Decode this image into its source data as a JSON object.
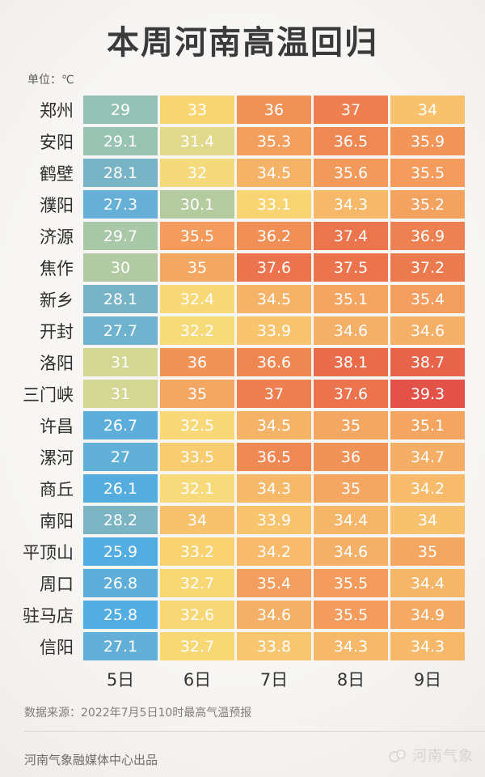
{
  "header": {
    "title": "本周河南高温回归",
    "unit_label": "单位：℃"
  },
  "chart_data": {
    "type": "heatmap",
    "title": "本周河南高温回归",
    "unit": "℃",
    "columns": [
      "5日",
      "6日",
      "7日",
      "8日",
      "9日"
    ],
    "rows": [
      {
        "city": "郑州",
        "values": [
          "29",
          "33",
          "36",
          "37",
          "34"
        ]
      },
      {
        "city": "安阳",
        "values": [
          "29.1",
          "31.4",
          "35.3",
          "36.5",
          "35.9"
        ]
      },
      {
        "city": "鹤壁",
        "values": [
          "28.1",
          "32",
          "34.5",
          "35.6",
          "35.5"
        ]
      },
      {
        "city": "濮阳",
        "values": [
          "27.3",
          "30.1",
          "33.1",
          "34.3",
          "35.2"
        ]
      },
      {
        "city": "济源",
        "values": [
          "29.7",
          "35.5",
          "36.2",
          "37.4",
          "36.9"
        ]
      },
      {
        "city": "焦作",
        "values": [
          "30",
          "35",
          "37.6",
          "37.5",
          "37.2"
        ]
      },
      {
        "city": "新乡",
        "values": [
          "28.1",
          "32.4",
          "34.5",
          "35.1",
          "35.4"
        ]
      },
      {
        "city": "开封",
        "values": [
          "27.7",
          "32.2",
          "33.9",
          "34.6",
          "34.6"
        ]
      },
      {
        "city": "洛阳",
        "values": [
          "31",
          "36",
          "36.6",
          "38.1",
          "38.7"
        ]
      },
      {
        "city": "三门峡",
        "values": [
          "31",
          "35",
          "37",
          "37.6",
          "39.3"
        ]
      },
      {
        "city": "许昌",
        "values": [
          "26.7",
          "32.5",
          "34.5",
          "35",
          "35.1"
        ]
      },
      {
        "city": "漯河",
        "values": [
          "27",
          "33.5",
          "36.5",
          "36",
          "34.7"
        ]
      },
      {
        "city": "商丘",
        "values": [
          "26.1",
          "32.1",
          "34.3",
          "35",
          "34.2"
        ]
      },
      {
        "city": "南阳",
        "values": [
          "28.2",
          "34",
          "33.9",
          "34.4",
          "34"
        ]
      },
      {
        "city": "平顶山",
        "values": [
          "25.9",
          "33.2",
          "34.2",
          "34.6",
          "35"
        ]
      },
      {
        "city": "周口",
        "values": [
          "26.8",
          "32.7",
          "35.4",
          "35.5",
          "34.4"
        ]
      },
      {
        "city": "驻马店",
        "values": [
          "25.8",
          "32.6",
          "34.6",
          "35.5",
          "34.9"
        ]
      },
      {
        "city": "信阳",
        "values": [
          "27.1",
          "32.7",
          "33.8",
          "34.3",
          "34.3"
        ]
      }
    ],
    "value_range": [
      25.8,
      39.3
    ],
    "legend": "none",
    "grid": "white gaps between cells",
    "color_scale": {
      "stops": [
        {
          "t": 25.5,
          "c": "#4DACE4"
        },
        {
          "t": 27.3,
          "c": "#66AFD6"
        },
        {
          "t": 28.2,
          "c": "#7BB5C4"
        },
        {
          "t": 29.1,
          "c": "#98C3B2"
        },
        {
          "t": 30.1,
          "c": "#B4CBA0"
        },
        {
          "t": 31.1,
          "c": "#D8D892"
        },
        {
          "t": 32.1,
          "c": "#F7DA7B"
        },
        {
          "t": 33.0,
          "c": "#F9D672"
        },
        {
          "t": 33.9,
          "c": "#F8C46E"
        },
        {
          "t": 34.6,
          "c": "#F5B067"
        },
        {
          "t": 35.4,
          "c": "#F39E5E"
        },
        {
          "t": 36.1,
          "c": "#F09157"
        },
        {
          "t": 36.8,
          "c": "#EE8352"
        },
        {
          "t": 37.5,
          "c": "#EB744D"
        },
        {
          "t": 38.2,
          "c": "#E96C4B"
        },
        {
          "t": 38.8,
          "c": "#E7624B"
        },
        {
          "t": 39.3,
          "c": "#E35249"
        }
      ],
      "text_color": "#FFFFFF"
    }
  },
  "footer": {
    "source": "数据来源：2022年7月5日10时最高气温预报",
    "producer": "河南气象融媒体中心出品",
    "watermark_label": "河南气象"
  }
}
